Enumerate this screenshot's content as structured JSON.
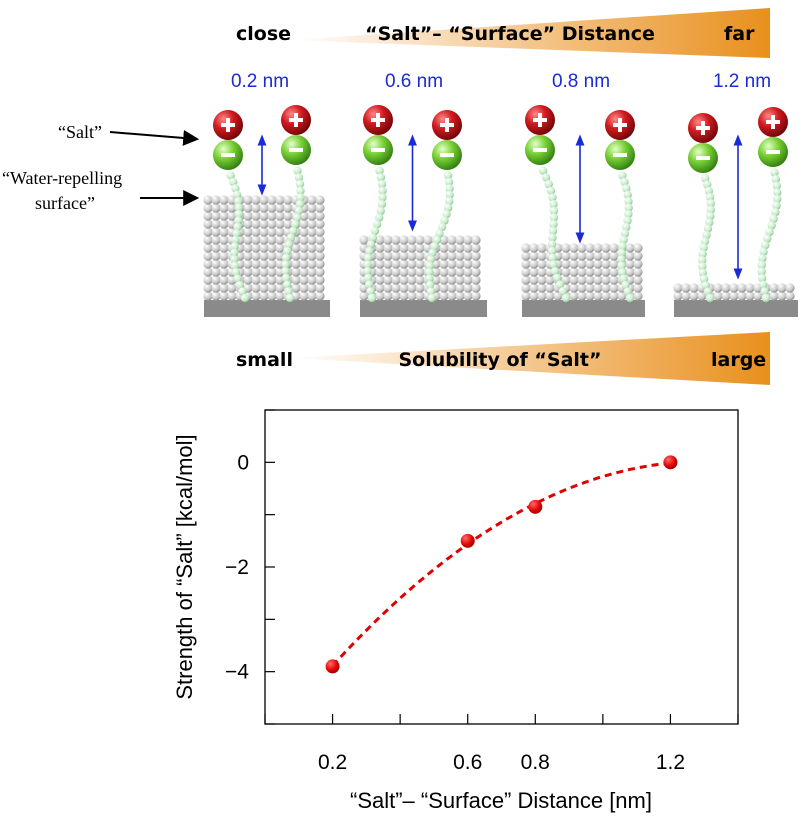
{
  "top_scale": {
    "left_label": "close",
    "center_label": "“Salt”– “Surface” Distance",
    "right_label": "far",
    "gradient_color": "#e8901c"
  },
  "bottom_scale": {
    "left_label": "small",
    "center_label": "Solubility of “Salt”",
    "right_label": "large",
    "gradient_color": "#e8901c"
  },
  "side_labels": {
    "salt": "“Salt”",
    "surface_line1": "“Water-repelling",
    "surface_line2": "surface”"
  },
  "panels": [
    {
      "distance_label": "0.2 nm",
      "layer_height": "tall"
    },
    {
      "distance_label": "0.6 nm",
      "layer_height": "medium"
    },
    {
      "distance_label": "0.8 nm",
      "layer_height": "short"
    },
    {
      "distance_label": "1.2 nm",
      "layer_height": "flat"
    }
  ],
  "colors": {
    "cation": "#c0161c",
    "anion": "#6cc82e",
    "tail": "#bfe6c4",
    "surface_bead": "#c9c9c9",
    "substrate": "#8a8a8a",
    "arrow_blue": "#1a2ad6",
    "marker": "#e00000"
  },
  "chart_data": {
    "type": "scatter",
    "xlabel": "“Salt”– “Surface” Distance [nm]",
    "ylabel": "Strength of “Salt” [kcal/mol]",
    "xlim": [
      0,
      1.4
    ],
    "ylim": [
      -5,
      1
    ],
    "x_ticks": [
      0.2,
      0.6,
      0.8,
      1.2
    ],
    "x_tick_labels": [
      "0.2",
      "0.6",
      "0.8",
      "1.2"
    ],
    "y_ticks": [
      0,
      -2,
      -4
    ],
    "y_tick_labels": [
      "0",
      "−2",
      "−4"
    ],
    "grid": false,
    "series": [
      {
        "x": [
          0.2,
          0.6,
          0.8,
          1.2
        ],
        "y": [
          -3.9,
          -1.5,
          -0.85,
          0.0
        ],
        "style": "markers + dashed fit"
      }
    ]
  }
}
